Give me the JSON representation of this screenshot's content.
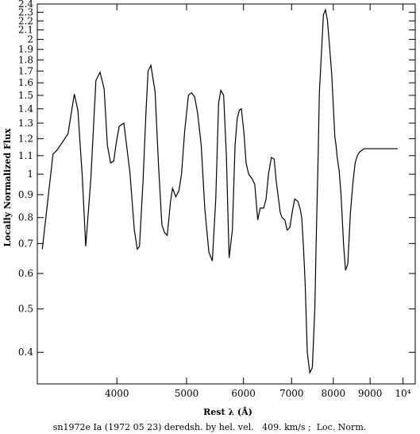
{
  "chart_data": {
    "type": "line",
    "title": "",
    "xlabel": "Rest λ (Å)",
    "ylabel": "Locally Normalized Flux",
    "caption": "sn1972e Ia (1972 05 23) deredsh. by hel. vel.   409. km/s ;  Loc. Norm.",
    "x_scale": "log",
    "y_scale": "log",
    "xlim": [
      3100,
      10400
    ],
    "ylim": [
      0.34,
      2.4
    ],
    "x_ticks": [
      {
        "value": 4000,
        "label": "4000"
      },
      {
        "value": 5000,
        "label": "5000"
      },
      {
        "value": 6000,
        "label": "6000"
      },
      {
        "value": 7000,
        "label": "7000"
      },
      {
        "value": 8000,
        "label": "8000"
      },
      {
        "value": 9000,
        "label": "9000"
      },
      {
        "value": 10000,
        "label": "10⁴"
      }
    ],
    "y_ticks": [
      {
        "value": 0.4,
        "label": "0.4"
      },
      {
        "value": 0.5,
        "label": "0.5"
      },
      {
        "value": 0.6,
        "label": "0.6"
      },
      {
        "value": 0.7,
        "label": "0.7"
      },
      {
        "value": 0.8,
        "label": "0.8"
      },
      {
        "value": 0.9,
        "label": "0.9"
      },
      {
        "value": 1.0,
        "label": "1"
      },
      {
        "value": 1.1,
        "label": "1.1"
      },
      {
        "value": 1.2,
        "label": "1.2"
      },
      {
        "value": 1.3,
        "label": "1.3"
      },
      {
        "value": 1.4,
        "label": "1.4"
      },
      {
        "value": 1.5,
        "label": "1.5"
      },
      {
        "value": 1.6,
        "label": "1.6"
      },
      {
        "value": 1.7,
        "label": "1.7"
      },
      {
        "value": 1.8,
        "label": "1.8"
      },
      {
        "value": 1.9,
        "label": "1.9"
      },
      {
        "value": 2.0,
        "label": "2"
      },
      {
        "value": 2.1,
        "label": "2.1"
      },
      {
        "value": 2.2,
        "label": "2.2"
      },
      {
        "value": 2.3,
        "label": "2.3"
      },
      {
        "value": 2.4,
        "label": "2.4"
      }
    ],
    "series": [
      {
        "x": [
          3150,
          3260,
          3300,
          3420,
          3490,
          3530,
          3580,
          3620,
          3680,
          3740,
          3790,
          3840,
          3880,
          3920,
          3960,
          3990,
          4030,
          4090,
          4170,
          4230,
          4270,
          4300,
          4350,
          4390,
          4420,
          4460,
          4520,
          4570,
          4620,
          4660,
          4700,
          4750,
          4780,
          4830,
          4880,
          4920,
          4970,
          5030,
          5080,
          5130,
          5180,
          5240,
          5300,
          5370,
          5430,
          5490,
          5540,
          5580,
          5630,
          5680,
          5730,
          5790,
          5840,
          5880,
          5920,
          5960,
          6010,
          6050,
          6100,
          6160,
          6220,
          6280,
          6330,
          6400,
          6450,
          6500,
          6560,
          6620,
          6660,
          6700,
          6750,
          6790,
          6850,
          6900,
          6960,
          7020,
          7070,
          7140,
          7190,
          7230,
          7270,
          7310,
          7360,
          7420,
          7480,
          7540,
          7580,
          7620,
          7650,
          7700,
          7750,
          7800,
          7850,
          7900,
          7960,
          8000,
          8040,
          8070,
          8100,
          8150,
          8200,
          8270,
          8320,
          8380,
          8450,
          8520,
          8580,
          8640,
          8700,
          8760,
          8830,
          8900,
          8980,
          9060,
          9140,
          9230,
          9300,
          9380,
          9440,
          9480,
          9510,
          9550,
          9600,
          9660,
          9700,
          9760,
          9830
        ],
        "y": [
          0.68,
          1.11,
          1.13,
          1.23,
          1.51,
          1.39,
          0.99,
          0.69,
          0.98,
          1.62,
          1.69,
          1.55,
          1.16,
          1.06,
          1.07,
          1.17,
          1.28,
          1.3,
          1.01,
          0.75,
          0.68,
          0.69,
          0.97,
          1.37,
          1.7,
          1.75,
          1.53,
          1.05,
          0.77,
          0.74,
          0.73,
          0.87,
          0.93,
          0.89,
          0.92,
          1.0,
          1.25,
          1.5,
          1.52,
          1.49,
          1.37,
          1.16,
          0.84,
          0.67,
          0.64,
          0.88,
          1.44,
          1.54,
          1.5,
          1.1,
          0.65,
          0.75,
          1.16,
          1.33,
          1.39,
          1.4,
          1.23,
          1.06,
          1.0,
          0.98,
          0.95,
          0.79,
          0.84,
          0.84,
          0.88,
          1.0,
          1.09,
          1.08,
          0.97,
          0.9,
          0.82,
          0.8,
          0.79,
          0.75,
          0.76,
          0.83,
          0.88,
          0.87,
          0.84,
          0.8,
          0.69,
          0.57,
          0.4,
          0.36,
          0.37,
          0.5,
          0.76,
          1.09,
          1.52,
          1.85,
          2.27,
          2.33,
          2.21,
          1.95,
          1.67,
          1.42,
          1.21,
          1.16,
          1.09,
          1.02,
          0.9,
          0.69,
          0.61,
          0.63,
          0.82,
          0.96,
          1.06,
          1.1,
          1.12,
          1.13,
          1.14,
          1.14,
          1.14,
          1.14,
          1.14,
          1.14,
          1.14,
          1.14,
          1.14,
          1.14,
          1.14,
          1.14,
          1.14,
          1.14,
          1.14,
          1.14,
          1.14
        ]
      }
    ],
    "grid": false,
    "legend": "none"
  }
}
